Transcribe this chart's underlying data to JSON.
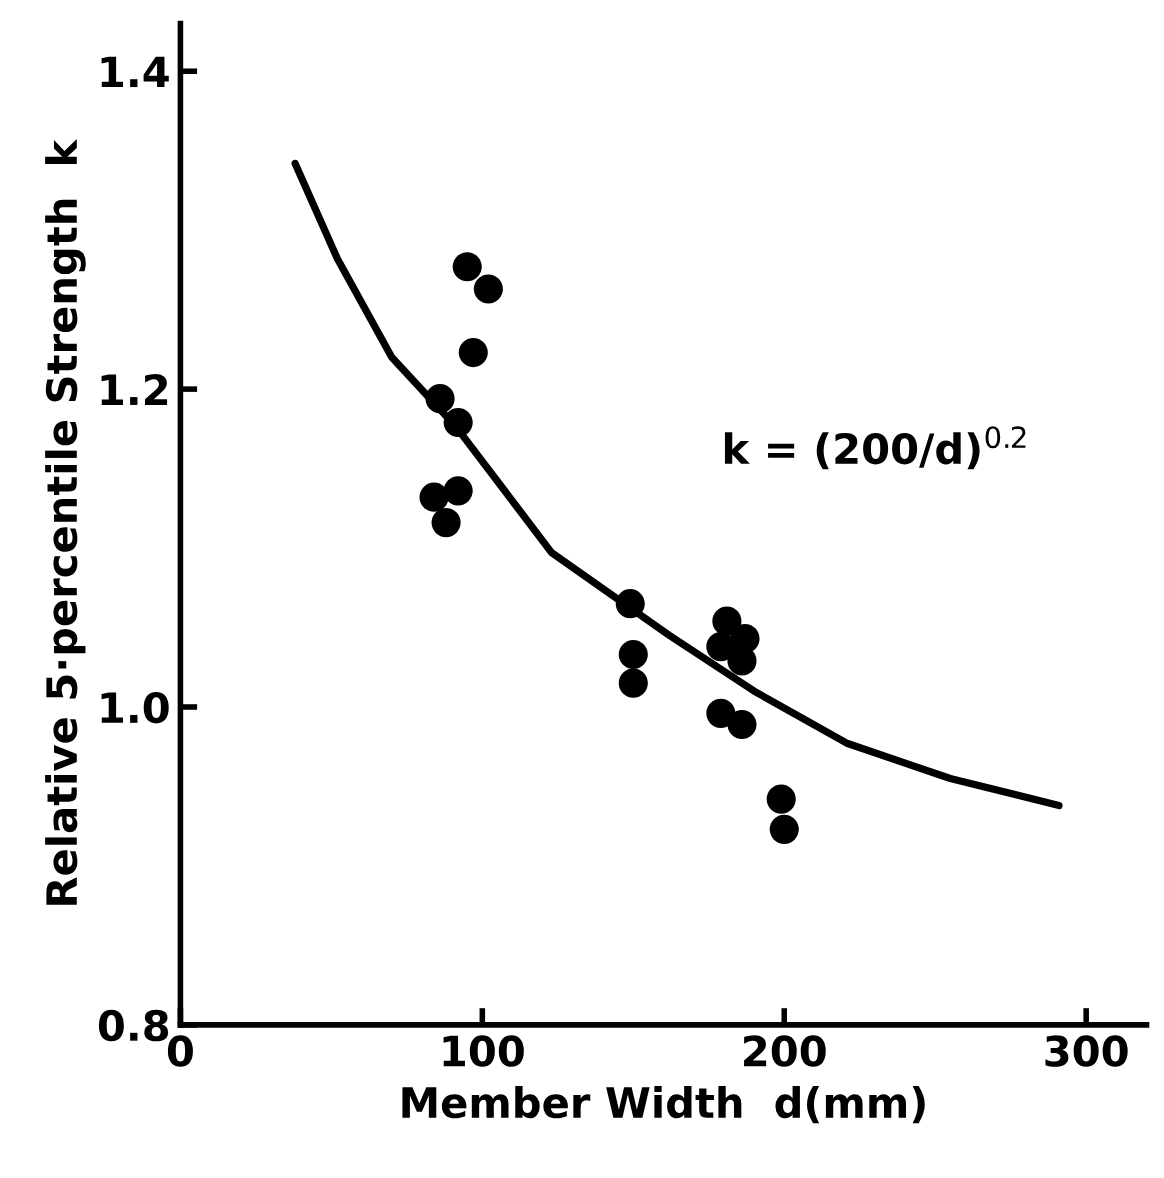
{
  "chart_data": {
    "type": "scatter",
    "xlabel": "Member Width  d(mm)",
    "ylabel": "Relative 5·percentile Strength  k",
    "xlim": [
      0,
      320
    ],
    "ylim": [
      0.8,
      1.43
    ],
    "xticks": [
      0,
      100,
      200,
      300
    ],
    "yticks": [
      0.8,
      {
        "value": 1.0,
        "label": "1.0"
      },
      1.2,
      1.4
    ],
    "grid": false,
    "legend": false,
    "marker": "circle",
    "annotations": [
      "k = (200/d)$^{0.2}$"
    ],
    "series": [
      {
        "color": "#000000",
        "x": [
          95,
          102,
          97,
          86,
          92,
          84,
          92,
          88,
          149,
          150,
          150,
          181,
          187,
          179,
          186,
          179,
          186,
          199,
          200
        ],
        "values": [
          1.277,
          1.263,
          1.223,
          1.194,
          1.179,
          1.132,
          1.136,
          1.116,
          1.065,
          1.033,
          1.015,
          1.054,
          1.043,
          1.038,
          1.029,
          0.996,
          0.989,
          0.942,
          0.923
        ]
      },
      {
        "type": "line",
        "color": "#000000",
        "marker": "none",
        "line_style": "solid",
        "x": [
          38,
          52,
          70,
          91,
          123,
          162,
          190,
          221,
          255,
          291
        ],
        "values": [
          1.342,
          1.282,
          1.22,
          1.177,
          1.097,
          1.045,
          1.01,
          0.977,
          0.955,
          0.938
        ]
      }
    ]
  }
}
